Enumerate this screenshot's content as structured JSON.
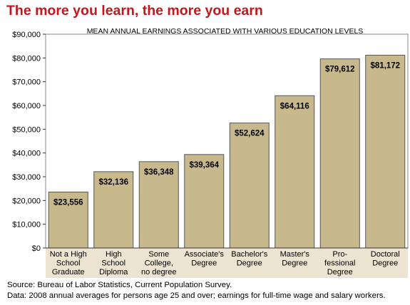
{
  "headline": "The more you learn, the more you earn",
  "colors": {
    "headline": "#c4161c",
    "bar_fill": "#c8b98d",
    "bar_stroke": "#555555",
    "plot_background": "#ffffff",
    "category_band": "#ece3d0"
  },
  "chart_data": {
    "type": "bar",
    "title": "MEAN ANNUAL EARNINGS ASSOCIATED WITH VARIOUS EDUCATION LEVELS",
    "categories": [
      [
        "Not a High",
        "School",
        "Graduate"
      ],
      [
        "High",
        "School",
        "Diploma"
      ],
      [
        "Some",
        "College,",
        "no degree"
      ],
      [
        "Associate's",
        "Degree"
      ],
      [
        "Bachelor's",
        "Degree"
      ],
      [
        "Master's",
        "Degree"
      ],
      [
        "Pro-",
        "fessional",
        "Degree"
      ],
      [
        "Doctoral",
        "Degree"
      ]
    ],
    "values": [
      23556,
      32136,
      36348,
      39364,
      52624,
      64116,
      79612,
      81172
    ],
    "value_labels": [
      "$23,556",
      "$32,136",
      "$36,348",
      "$39,364",
      "$52,624",
      "$64,116",
      "$79,612",
      "$81,172"
    ],
    "y_ticks": [
      0,
      10000,
      20000,
      30000,
      40000,
      50000,
      60000,
      70000,
      80000,
      90000
    ],
    "y_tick_labels": [
      "$0",
      "$10,000",
      "$20,000",
      "$30,000",
      "$40,000",
      "$50,000",
      "$60,000",
      "$70,000",
      "$80,000",
      "$90,000"
    ],
    "ylim": [
      0,
      90000
    ],
    "xlabel": "",
    "ylabel": "",
    "grid": false,
    "legend": "none"
  },
  "footer": {
    "source": "Source:  Bureau of Labor Statistics, Current Population Survey.",
    "data_note": "Data:  2008 annual averages for persons age 25 and over; earnings for full-time wage and salary workers."
  }
}
